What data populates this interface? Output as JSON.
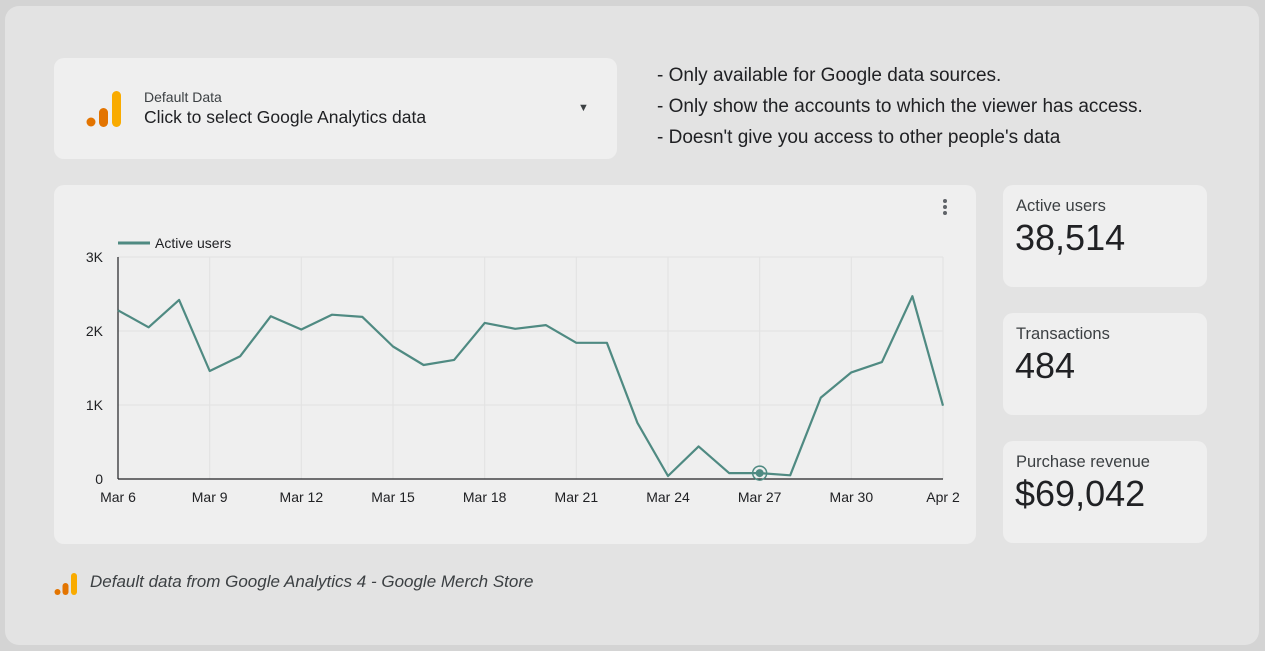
{
  "selector": {
    "title": "Default Data",
    "subtitle": "Click to select Google Analytics data",
    "icon": "google-analytics-logo",
    "dropdown_icon": "dropdown-caret-icon"
  },
  "notes": [
    "- Only available for Google data sources.",
    "- Only show the accounts to which the viewer has access.",
    "- Doesn't give you access to other people's data"
  ],
  "kpis": [
    {
      "label": "Active users",
      "value": "38,514"
    },
    {
      "label": "Transactions",
      "value": "484"
    },
    {
      "label": "Purchase revenue",
      "value": "$69,042"
    }
  ],
  "footer": {
    "text": "Default data from Google Analytics 4 - Google Merch Store",
    "icon": "google-analytics-logo"
  },
  "colors": {
    "series": "#4f8a82",
    "logo_light": "#f9ab00",
    "logo_dark": "#e37400"
  },
  "chart_data": {
    "type": "line",
    "legend": "top-left",
    "grid": true,
    "ylim": [
      0,
      3000
    ],
    "yticks": [
      {
        "v": 0,
        "label": "0"
      },
      {
        "v": 1000,
        "label": "1K"
      },
      {
        "v": 2000,
        "label": "2K"
      },
      {
        "v": 3000,
        "label": "3K"
      }
    ],
    "x": [
      "Mar 6",
      "Mar 7",
      "Mar 8",
      "Mar 9",
      "Mar 10",
      "Mar 11",
      "Mar 12",
      "Mar 13",
      "Mar 14",
      "Mar 15",
      "Mar 16",
      "Mar 17",
      "Mar 18",
      "Mar 19",
      "Mar 20",
      "Mar 21",
      "Mar 22",
      "Mar 23",
      "Mar 24",
      "Mar 25",
      "Mar 26",
      "Mar 27",
      "Mar 28",
      "Mar 29",
      "Mar 30",
      "Mar 31",
      "Apr 1",
      "Apr 2"
    ],
    "xticks": [
      "Mar 6",
      "Mar 9",
      "Mar 12",
      "Mar 15",
      "Mar 18",
      "Mar 21",
      "Mar 24",
      "Mar 27",
      "Mar 30",
      "Apr 2"
    ],
    "highlight": "Mar 27",
    "series": [
      {
        "name": "Active users",
        "values": [
          2280,
          2050,
          2420,
          1460,
          1660,
          2200,
          2020,
          2220,
          2190,
          1790,
          1540,
          1610,
          2110,
          2030,
          2080,
          1840,
          1840,
          760,
          40,
          440,
          80,
          80,
          50,
          1100,
          1440,
          1580,
          2470,
          990
        ]
      }
    ]
  }
}
